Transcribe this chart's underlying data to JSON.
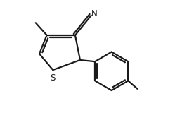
{
  "bg_color": "#ffffff",
  "line_color": "#1a1a1a",
  "line_width": 1.6,
  "dbo": 0.018,
  "font_size_S": 8.5,
  "font_size_N": 8.5,
  "figsize": [
    2.49,
    1.77
  ],
  "dpi": 100,
  "xlim": [
    0.0,
    1.0
  ],
  "ylim": [
    0.0,
    1.0
  ]
}
